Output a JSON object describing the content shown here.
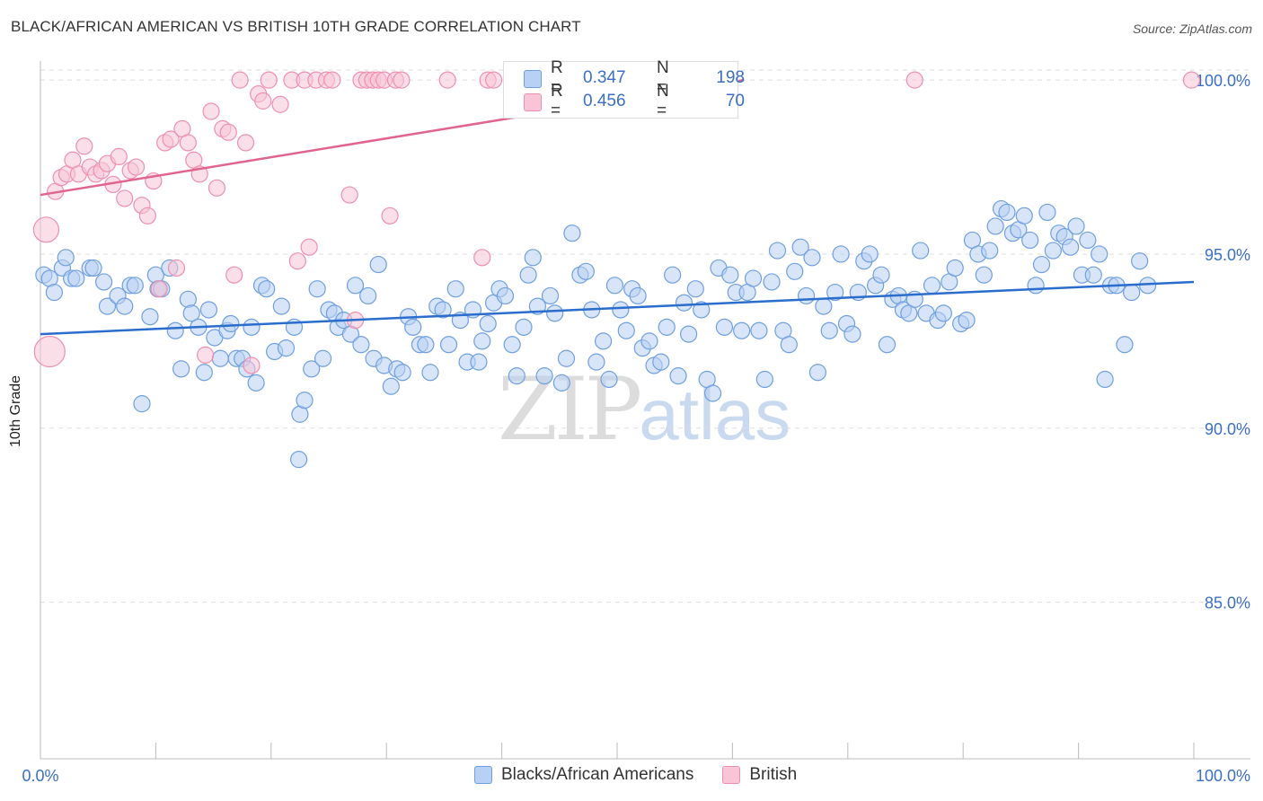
{
  "title": "BLACK/AFRICAN AMERICAN VS BRITISH 10TH GRADE CORRELATION CHART",
  "source": "Source: ZipAtlas.com",
  "watermark": {
    "zip": "ZIP",
    "atlas": "atlas"
  },
  "colors": {
    "blue": "#6f9fe0",
    "blue_fill": "#b8d0f3",
    "blue_line": "#2a6dcc",
    "pink": "#ee8fb0",
    "pink_fill": "#f8c4d6",
    "pink_line": "#e0648c",
    "tick_label": "#3b6fc4",
    "grid": "#dddddd"
  },
  "stats": [
    {
      "r_label": "R =",
      "r": "0.347",
      "n_label": "N =",
      "n": "198"
    },
    {
      "r_label": "R =",
      "r": "0.456",
      "n_label": "N =",
      "n": "70"
    }
  ],
  "legend": [
    "Blacks/African Americans",
    "British"
  ],
  "chart_data": {
    "type": "scatter",
    "title": "BLACK/AFRICAN AMERICAN VS BRITISH 10TH GRADE CORRELATION CHART",
    "xlabel": "",
    "ylabel": "10th Grade",
    "xlim": [
      0,
      100
    ],
    "ylim": [
      80.5,
      100.7
    ],
    "x_ticks": [
      "0.0%",
      "100.0%"
    ],
    "y_ticks": [
      {
        "value": 100,
        "label": "100.0%"
      },
      {
        "value": 95,
        "label": "95.0%"
      },
      {
        "value": 90,
        "label": "90.0%"
      },
      {
        "value": 85,
        "label": "85.0%"
      }
    ],
    "grid": true,
    "series": [
      {
        "name": "Blacks/African Americans",
        "trend": [
          [
            0,
            92.7
          ],
          [
            100,
            94.2
          ]
        ],
        "points": [
          [
            0.3,
            94.4
          ],
          [
            0.8,
            94.3
          ],
          [
            1.2,
            93.9
          ],
          [
            1.9,
            94.6
          ],
          [
            2.2,
            94.9
          ],
          [
            2.7,
            94.3
          ],
          [
            3.1,
            94.3
          ],
          [
            4.3,
            94.6
          ],
          [
            4.6,
            94.6
          ],
          [
            5.5,
            94.2
          ],
          [
            5.8,
            93.5
          ],
          [
            6.7,
            93.8
          ],
          [
            7.3,
            93.5
          ],
          [
            7.8,
            94.1
          ],
          [
            8.2,
            94.1
          ],
          [
            8.8,
            90.7
          ],
          [
            9.5,
            93.2
          ],
          [
            10.0,
            94.4
          ],
          [
            10.2,
            94.0
          ],
          [
            10.5,
            94.0
          ],
          [
            11.2,
            94.6
          ],
          [
            11.7,
            92.8
          ],
          [
            12.2,
            91.7
          ],
          [
            12.8,
            93.7
          ],
          [
            13.1,
            93.3
          ],
          [
            13.7,
            92.9
          ],
          [
            14.2,
            91.6
          ],
          [
            14.6,
            93.4
          ],
          [
            15.1,
            92.6
          ],
          [
            15.6,
            92.0
          ],
          [
            16.2,
            92.8
          ],
          [
            16.5,
            93.0
          ],
          [
            17.0,
            92.0
          ],
          [
            17.5,
            92.0
          ],
          [
            17.9,
            91.7
          ],
          [
            18.3,
            92.9
          ],
          [
            18.7,
            91.3
          ],
          [
            19.2,
            94.1
          ],
          [
            19.6,
            94.0
          ],
          [
            20.3,
            92.2
          ],
          [
            20.9,
            93.5
          ],
          [
            21.3,
            92.3
          ],
          [
            22.0,
            92.9
          ],
          [
            22.5,
            90.4
          ],
          [
            22.9,
            90.8
          ],
          [
            22.4,
            89.1
          ],
          [
            23.5,
            91.7
          ],
          [
            24.0,
            94.0
          ],
          [
            24.5,
            92.0
          ],
          [
            25.0,
            93.4
          ],
          [
            25.5,
            93.3
          ],
          [
            25.8,
            92.9
          ],
          [
            26.3,
            93.1
          ],
          [
            26.9,
            92.7
          ],
          [
            27.3,
            94.1
          ],
          [
            27.8,
            92.4
          ],
          [
            28.4,
            93.8
          ],
          [
            28.9,
            92.0
          ],
          [
            29.3,
            94.7
          ],
          [
            29.8,
            91.8
          ],
          [
            30.4,
            91.2
          ],
          [
            30.9,
            91.7
          ],
          [
            31.4,
            91.6
          ],
          [
            31.9,
            93.2
          ],
          [
            32.3,
            92.9
          ],
          [
            32.9,
            92.4
          ],
          [
            33.4,
            92.4
          ],
          [
            33.8,
            91.6
          ],
          [
            34.4,
            93.5
          ],
          [
            34.9,
            93.4
          ],
          [
            35.4,
            92.4
          ],
          [
            36.0,
            94.0
          ],
          [
            36.4,
            93.1
          ],
          [
            37.0,
            91.9
          ],
          [
            37.5,
            93.4
          ],
          [
            38.0,
            91.9
          ],
          [
            38.3,
            92.5
          ],
          [
            38.8,
            93.0
          ],
          [
            39.3,
            93.6
          ],
          [
            39.8,
            94.0
          ],
          [
            40.3,
            93.8
          ],
          [
            40.9,
            92.4
          ],
          [
            41.3,
            91.5
          ],
          [
            41.9,
            92.9
          ],
          [
            42.3,
            94.4
          ],
          [
            42.7,
            94.9
          ],
          [
            43.1,
            93.5
          ],
          [
            43.7,
            91.5
          ],
          [
            44.2,
            93.8
          ],
          [
            44.6,
            93.3
          ],
          [
            45.2,
            91.3
          ],
          [
            45.6,
            92.0
          ],
          [
            46.1,
            95.6
          ],
          [
            46.8,
            94.4
          ],
          [
            47.3,
            94.5
          ],
          [
            47.8,
            93.4
          ],
          [
            48.2,
            91.9
          ],
          [
            48.8,
            92.5
          ],
          [
            49.3,
            91.4
          ],
          [
            49.8,
            94.1
          ],
          [
            50.3,
            93.4
          ],
          [
            50.8,
            92.8
          ],
          [
            51.3,
            94.0
          ],
          [
            51.8,
            93.8
          ],
          [
            52.2,
            92.3
          ],
          [
            52.8,
            92.5
          ],
          [
            53.2,
            91.8
          ],
          [
            53.8,
            91.9
          ],
          [
            54.3,
            92.9
          ],
          [
            54.8,
            94.4
          ],
          [
            55.3,
            91.5
          ],
          [
            55.8,
            93.6
          ],
          [
            56.2,
            92.7
          ],
          [
            56.8,
            94.0
          ],
          [
            57.3,
            93.4
          ],
          [
            57.8,
            91.4
          ],
          [
            58.3,
            91.0
          ],
          [
            58.8,
            94.6
          ],
          [
            59.3,
            92.9
          ],
          [
            59.8,
            94.4
          ],
          [
            60.3,
            93.9
          ],
          [
            60.8,
            92.8
          ],
          [
            61.3,
            93.9
          ],
          [
            61.8,
            94.3
          ],
          [
            62.3,
            92.8
          ],
          [
            62.8,
            91.4
          ],
          [
            63.4,
            94.2
          ],
          [
            63.9,
            95.1
          ],
          [
            64.4,
            92.8
          ],
          [
            64.9,
            92.4
          ],
          [
            65.4,
            94.5
          ],
          [
            65.9,
            95.2
          ],
          [
            66.4,
            93.8
          ],
          [
            66.9,
            94.9
          ],
          [
            67.4,
            91.6
          ],
          [
            67.9,
            93.5
          ],
          [
            68.4,
            92.8
          ],
          [
            68.9,
            93.9
          ],
          [
            69.4,
            95.0
          ],
          [
            69.9,
            93.0
          ],
          [
            70.4,
            92.7
          ],
          [
            70.9,
            93.9
          ],
          [
            71.4,
            94.8
          ],
          [
            71.9,
            95.0
          ],
          [
            72.4,
            94.1
          ],
          [
            72.9,
            94.4
          ],
          [
            73.4,
            92.4
          ],
          [
            73.9,
            93.7
          ],
          [
            74.4,
            93.8
          ],
          [
            74.8,
            93.4
          ],
          [
            75.3,
            93.3
          ],
          [
            75.8,
            93.7
          ],
          [
            76.3,
            95.1
          ],
          [
            76.8,
            93.3
          ],
          [
            77.3,
            94.1
          ],
          [
            77.8,
            93.1
          ],
          [
            78.3,
            93.3
          ],
          [
            78.8,
            94.2
          ],
          [
            79.3,
            94.6
          ],
          [
            79.8,
            93.0
          ],
          [
            80.3,
            93.1
          ],
          [
            80.8,
            95.4
          ],
          [
            81.3,
            95.0
          ],
          [
            81.8,
            94.4
          ],
          [
            82.3,
            95.1
          ],
          [
            82.8,
            95.8
          ],
          [
            83.3,
            96.3
          ],
          [
            83.8,
            96.2
          ],
          [
            84.3,
            95.6
          ],
          [
            84.8,
            95.7
          ],
          [
            85.3,
            96.1
          ],
          [
            85.8,
            95.4
          ],
          [
            86.3,
            94.1
          ],
          [
            86.8,
            94.7
          ],
          [
            87.3,
            96.2
          ],
          [
            87.8,
            95.1
          ],
          [
            88.3,
            95.6
          ],
          [
            88.8,
            95.5
          ],
          [
            89.3,
            95.2
          ],
          [
            89.8,
            95.8
          ],
          [
            90.3,
            94.4
          ],
          [
            90.8,
            95.4
          ],
          [
            91.3,
            94.4
          ],
          [
            91.8,
            95.0
          ],
          [
            92.3,
            91.4
          ],
          [
            92.8,
            94.1
          ],
          [
            93.3,
            94.1
          ],
          [
            94.0,
            92.4
          ],
          [
            94.6,
            93.9
          ],
          [
            95.3,
            94.8
          ],
          [
            96.0,
            94.1
          ]
        ]
      },
      {
        "name": "British",
        "trend": [
          [
            0,
            96.7
          ],
          [
            61,
            100.0
          ]
        ],
        "points": [
          [
            0.5,
            95.7
          ],
          [
            0.8,
            92.2
          ],
          [
            1.3,
            96.8
          ],
          [
            1.8,
            97.2
          ],
          [
            2.3,
            97.3
          ],
          [
            2.8,
            97.7
          ],
          [
            3.3,
            97.3
          ],
          [
            3.8,
            98.1
          ],
          [
            4.3,
            97.5
          ],
          [
            4.8,
            97.3
          ],
          [
            5.3,
            97.4
          ],
          [
            5.8,
            97.6
          ],
          [
            6.3,
            97.0
          ],
          [
            6.8,
            97.8
          ],
          [
            7.3,
            96.6
          ],
          [
            7.8,
            97.4
          ],
          [
            8.3,
            97.5
          ],
          [
            8.8,
            96.4
          ],
          [
            9.3,
            96.1
          ],
          [
            9.8,
            97.1
          ],
          [
            10.3,
            94.0
          ],
          [
            10.8,
            98.2
          ],
          [
            11.3,
            98.3
          ],
          [
            11.8,
            94.6
          ],
          [
            12.3,
            98.6
          ],
          [
            12.8,
            98.2
          ],
          [
            13.3,
            97.7
          ],
          [
            13.8,
            97.3
          ],
          [
            14.3,
            92.1
          ],
          [
            14.8,
            99.1
          ],
          [
            15.3,
            96.9
          ],
          [
            15.8,
            98.6
          ],
          [
            16.3,
            98.5
          ],
          [
            16.8,
            94.4
          ],
          [
            17.3,
            100.0
          ],
          [
            17.8,
            98.2
          ],
          [
            18.3,
            91.8
          ],
          [
            18.9,
            99.6
          ],
          [
            19.3,
            99.4
          ],
          [
            19.8,
            100.0
          ],
          [
            20.8,
            99.3
          ],
          [
            21.8,
            100.0
          ],
          [
            22.3,
            94.8
          ],
          [
            22.9,
            100.0
          ],
          [
            23.3,
            95.2
          ],
          [
            23.9,
            100.0
          ],
          [
            24.8,
            100.0
          ],
          [
            25.3,
            100.0
          ],
          [
            26.8,
            96.7
          ],
          [
            27.3,
            93.1
          ],
          [
            27.8,
            100.0
          ],
          [
            28.3,
            100.0
          ],
          [
            28.8,
            100.0
          ],
          [
            29.3,
            100.0
          ],
          [
            29.8,
            100.0
          ],
          [
            30.3,
            96.1
          ],
          [
            30.8,
            100.0
          ],
          [
            31.3,
            100.0
          ],
          [
            35.3,
            100.0
          ],
          [
            38.3,
            94.9
          ],
          [
            38.8,
            100.0
          ],
          [
            39.3,
            100.0
          ],
          [
            42.8,
            100.0
          ],
          [
            45.3,
            100.0
          ],
          [
            46.3,
            100.0
          ],
          [
            48.3,
            100.0
          ],
          [
            51.3,
            100.0
          ],
          [
            53.3,
            100.0
          ],
          [
            75.8,
            100.0
          ],
          [
            99.8,
            100.0
          ]
        ]
      }
    ]
  }
}
